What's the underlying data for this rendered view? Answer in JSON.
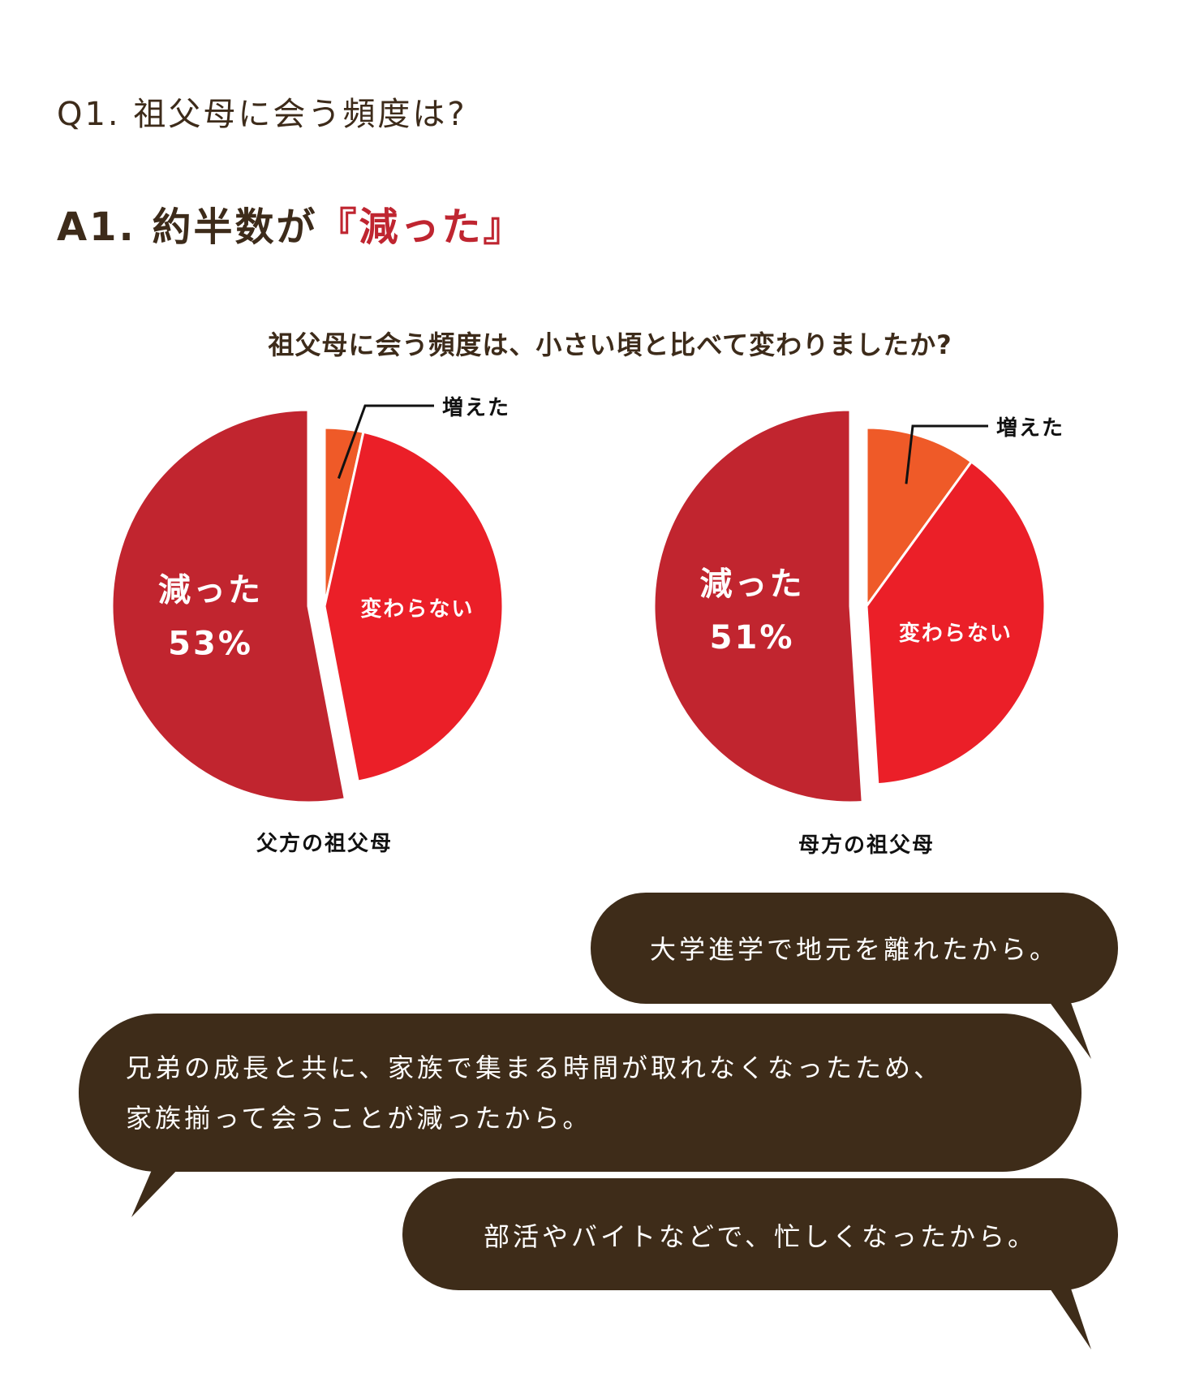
{
  "heading": {
    "question": "Q1. 祖父母に会う頻度は?",
    "answer_prefix": "A1. 約半数が",
    "answer_highlight": "『減った』"
  },
  "chart_title": "祖父母に会う頻度は、小さい頃と比べて変わりましたか?",
  "colors": {
    "decreased": "#c1252f",
    "unchanged": "#eb1f28",
    "increased": "#ef5a28",
    "text": "#3d2b1a",
    "bubble": "#3e2c19"
  },
  "chart_data": [
    {
      "type": "pie",
      "caption": "父方の祖父母",
      "slices": [
        {
          "label": "増えた",
          "value": 3.5,
          "color": "#ef5a28"
        },
        {
          "label": "変わらない",
          "value": 43.5,
          "color": "#eb1f28"
        },
        {
          "label": "減った",
          "value": 53,
          "percent_label": "53%",
          "color": "#c1252f"
        }
      ]
    },
    {
      "type": "pie",
      "caption": "母方の祖父母",
      "slices": [
        {
          "label": "増えた",
          "value": 10,
          "color": "#ef5a28"
        },
        {
          "label": "変わらない",
          "value": 39,
          "color": "#eb1f28"
        },
        {
          "label": "減った",
          "value": 51,
          "percent_label": "51%",
          "color": "#c1252f"
        }
      ]
    }
  ],
  "bubbles": [
    {
      "lines": [
        "大学進学で地元を離れたから。"
      ]
    },
    {
      "lines": [
        "兄弟の成長と共に、家族で集まる時間が取れなくなったため、",
        "家族揃って会うことが減ったから。"
      ]
    },
    {
      "lines": [
        "部活やバイトなどで、忙しくなったから。"
      ]
    }
  ]
}
